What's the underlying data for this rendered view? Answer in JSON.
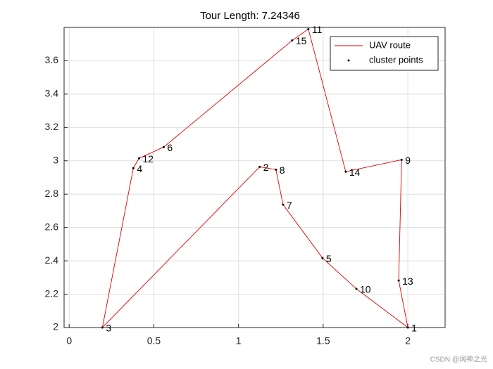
{
  "chart_data": {
    "type": "line",
    "title": "Tour Length: 7.24346",
    "xlim": [
      -0.03,
      2.22
    ],
    "ylim": [
      2,
      3.8
    ],
    "xticks": [
      0,
      0.5,
      1,
      1.5,
      2
    ],
    "yticks": [
      2,
      2.2,
      2.4,
      2.6,
      2.8,
      3,
      3.2,
      3.4,
      3.6
    ],
    "grid": true,
    "legend": "northeast",
    "series": [
      {
        "name": "UAV route",
        "style": "line",
        "color": "#e00000",
        "x": [
          2.0,
          1.946,
          1.963,
          1.633,
          1.4125,
          1.317,
          0.558,
          0.4125,
          0.379,
          0.196,
          1.125,
          1.221,
          1.263,
          1.496,
          1.696,
          2.0
        ],
        "y": [
          2.0,
          2.282,
          3.006,
          2.935,
          3.79,
          3.722,
          3.082,
          3.015,
          2.956,
          2.0,
          2.964,
          2.947,
          2.737,
          2.417,
          2.232,
          2.0
        ]
      },
      {
        "name": "cluster points",
        "style": "points",
        "color": "#000000",
        "x": [
          2.0,
          1.125,
          0.196,
          0.379,
          1.496,
          0.558,
          1.263,
          1.221,
          1.963,
          1.696,
          1.4125,
          0.4125,
          1.946,
          1.633,
          1.317
        ],
        "y": [
          2.0,
          2.964,
          2.0,
          2.956,
          2.417,
          3.082,
          2.737,
          2.947,
          3.006,
          2.232,
          3.79,
          3.015,
          2.282,
          2.935,
          3.722
        ],
        "labels": [
          "1",
          "2",
          "3",
          "4",
          "5",
          "6",
          "7",
          "8",
          "9",
          "10",
          "11",
          "12",
          "13",
          "14",
          "15"
        ]
      }
    ],
    "watermark": "CSDN @阔神之光"
  }
}
